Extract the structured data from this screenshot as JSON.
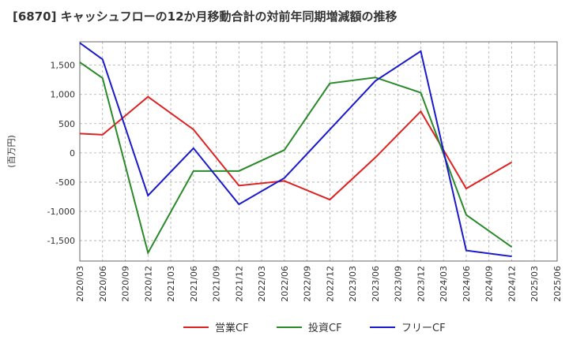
{
  "chart_data": {
    "type": "line",
    "title": "[6870]  キャッシュフローの12か月移動合計の対前年同期増減額の推移",
    "ylabel": "(百万円)",
    "xlabel": "",
    "ylim": [
      -1850,
      1900
    ],
    "yticks": [
      1500,
      1000,
      500,
      0,
      -500,
      -1000,
      -1500
    ],
    "ytick_labels": [
      "1,500",
      "1,000",
      "500",
      "0",
      "-500",
      "-1,000",
      "-1,500"
    ],
    "categories": [
      "2020/03",
      "2020/06",
      "2020/09",
      "2020/12",
      "2021/03",
      "2021/06",
      "2021/09",
      "2021/12",
      "2022/03",
      "2022/06",
      "2022/09",
      "2022/12",
      "2023/03",
      "2023/06",
      "2023/09",
      "2023/12",
      "2024/03",
      "2024/06",
      "2024/09",
      "2024/12",
      "2025/03",
      "2025/06"
    ],
    "grid": true,
    "legend_position": "bottom",
    "series": [
      {
        "name": "営業CF",
        "color": "#dd2222",
        "values": [
          330,
          310,
          null,
          960,
          null,
          400,
          null,
          -560,
          null,
          -480,
          null,
          -800,
          null,
          -80,
          null,
          710,
          null,
          -610,
          null,
          -160,
          null,
          null
        ]
      },
      {
        "name": "投資CF",
        "color": "#2a8a2a",
        "values": [
          1550,
          1280,
          null,
          -1710,
          null,
          -310,
          null,
          -310,
          null,
          50,
          null,
          1190,
          null,
          1290,
          null,
          1030,
          null,
          -1060,
          null,
          -1610,
          null,
          null
        ]
      },
      {
        "name": "フリーCF",
        "color": "#1a1acc",
        "values": [
          1880,
          1600,
          null,
          -730,
          null,
          80,
          null,
          -880,
          null,
          -430,
          null,
          null,
          null,
          1230,
          null,
          1740,
          null,
          -1670,
          null,
          -1770,
          null,
          null
        ]
      }
    ]
  }
}
